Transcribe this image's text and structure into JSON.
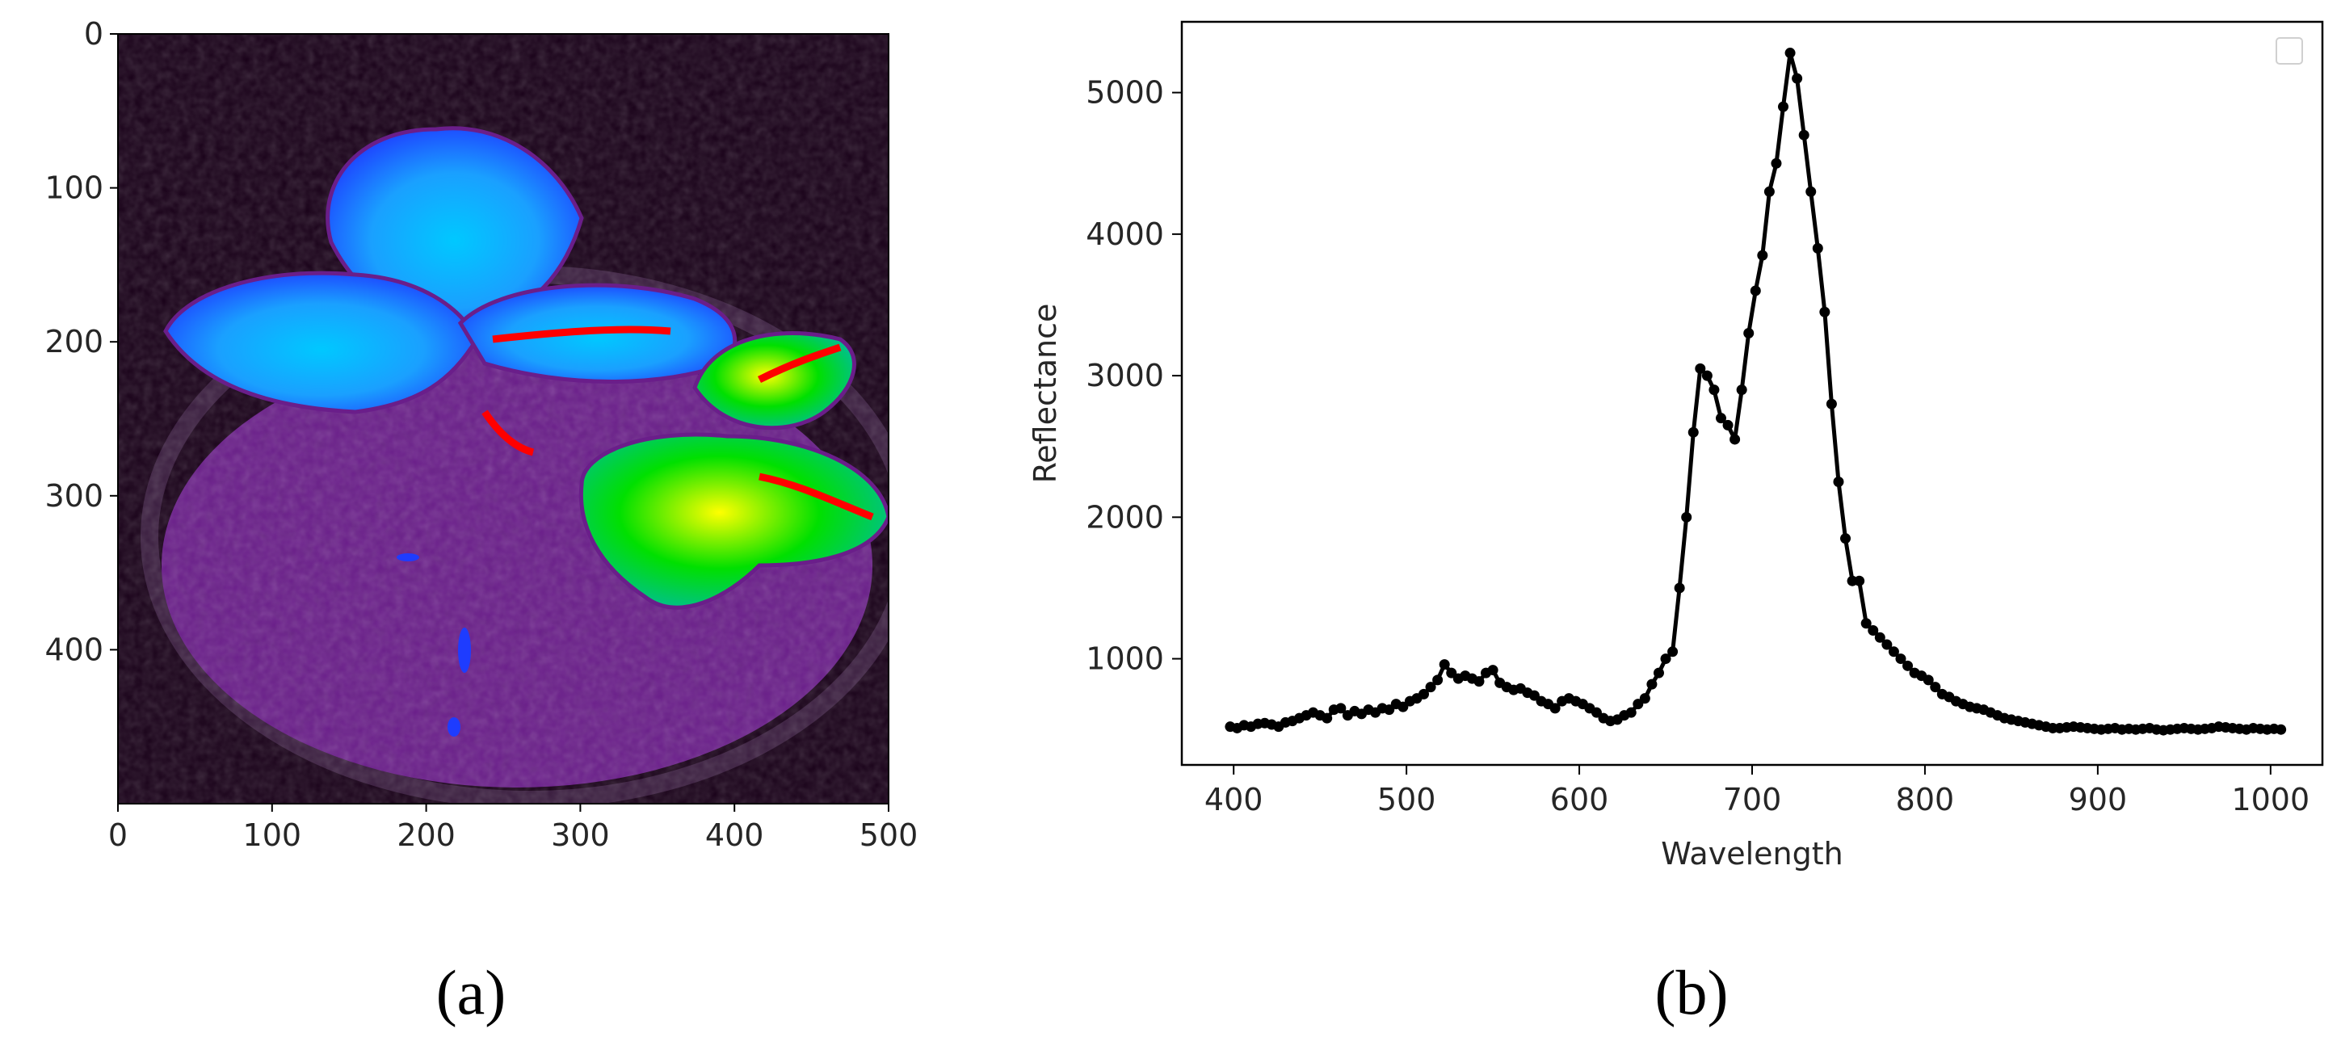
{
  "chart_data": [
    {
      "type": "heatmap",
      "panel_label": "(a)",
      "xlim": [
        0,
        500
      ],
      "ylim": [
        500,
        0
      ],
      "x_ticks": [
        0,
        100,
        200,
        300,
        400,
        500
      ],
      "y_ticks": [
        0,
        100,
        200,
        300,
        400
      ],
      "colormap": [
        "#180018",
        "#6a1e8a",
        "#1e3cff",
        "#00c8ff",
        "#00e000",
        "#ffff00",
        "#ff0000"
      ]
    },
    {
      "type": "line",
      "panel_label": "(b)",
      "xlabel": "Wavelength",
      "ylabel": "Reflectance",
      "xlim": [
        370,
        1030
      ],
      "ylim": [
        250,
        5500
      ],
      "x_ticks": [
        400,
        500,
        600,
        700,
        800,
        900,
        1000
      ],
      "y_ticks": [
        1000,
        2000,
        3000,
        4000,
        5000
      ],
      "legend": "top-right",
      "series": [
        {
          "color": "#000000",
          "x": [
            398,
            402,
            406,
            410,
            414,
            418,
            422,
            426,
            430,
            434,
            438,
            442,
            446,
            450,
            454,
            458,
            462,
            466,
            470,
            474,
            478,
            482,
            486,
            490,
            494,
            498,
            502,
            506,
            510,
            514,
            518,
            522,
            526,
            530,
            534,
            538,
            542,
            546,
            550,
            554,
            558,
            562,
            566,
            570,
            574,
            578,
            582,
            586,
            590,
            594,
            598,
            602,
            606,
            610,
            614,
            618,
            622,
            626,
            630,
            634,
            638,
            642,
            646,
            650,
            654,
            658,
            662,
            666,
            670,
            674,
            678,
            682,
            686,
            690,
            694,
            698,
            702,
            706,
            710,
            714,
            718,
            722,
            726,
            730,
            734,
            738,
            742,
            746,
            750,
            754,
            758,
            762,
            766,
            770,
            774,
            778,
            782,
            786,
            790,
            794,
            798,
            802,
            806,
            810,
            814,
            818,
            822,
            826,
            830,
            834,
            838,
            842,
            846,
            850,
            854,
            858,
            862,
            866,
            870,
            874,
            878,
            882,
            886,
            890,
            894,
            898,
            902,
            906,
            910,
            914,
            918,
            922,
            926,
            930,
            934,
            938,
            942,
            946,
            950,
            954,
            958,
            962,
            966,
            970,
            974,
            978,
            982,
            986,
            990,
            994,
            998,
            1002,
            1006
          ],
          "y": [
            520,
            510,
            530,
            520,
            540,
            545,
            535,
            520,
            550,
            560,
            580,
            600,
            620,
            600,
            580,
            640,
            650,
            600,
            630,
            610,
            640,
            620,
            650,
            640,
            680,
            660,
            700,
            720,
            750,
            800,
            850,
            960,
            900,
            860,
            880,
            860,
            840,
            900,
            920,
            830,
            800,
            780,
            790,
            760,
            740,
            700,
            680,
            650,
            700,
            720,
            700,
            680,
            650,
            620,
            580,
            560,
            570,
            600,
            620,
            680,
            720,
            820,
            900,
            1000,
            1050,
            1500,
            2000,
            2600,
            3050,
            3000,
            2900,
            2700,
            2650,
            2550,
            2900,
            3300,
            3600,
            3850,
            4300,
            4500,
            4900,
            5280,
            5100,
            4700,
            4300,
            3900,
            3450,
            2800,
            2250,
            1850,
            1550,
            1550,
            1250,
            1200,
            1150,
            1100,
            1050,
            1000,
            950,
            900,
            880,
            850,
            800,
            750,
            730,
            700,
            680,
            660,
            650,
            640,
            620,
            600,
            580,
            570,
            560,
            550,
            540,
            530,
            520,
            510,
            510,
            515,
            520,
            515,
            510,
            505,
            500,
            505,
            510,
            500,
            505,
            500,
            505,
            510,
            500,
            495,
            500,
            505,
            510,
            505,
            500,
            505,
            510,
            520,
            515,
            510,
            505,
            500,
            510,
            505,
            500,
            505,
            500
          ]
        }
      ]
    }
  ]
}
